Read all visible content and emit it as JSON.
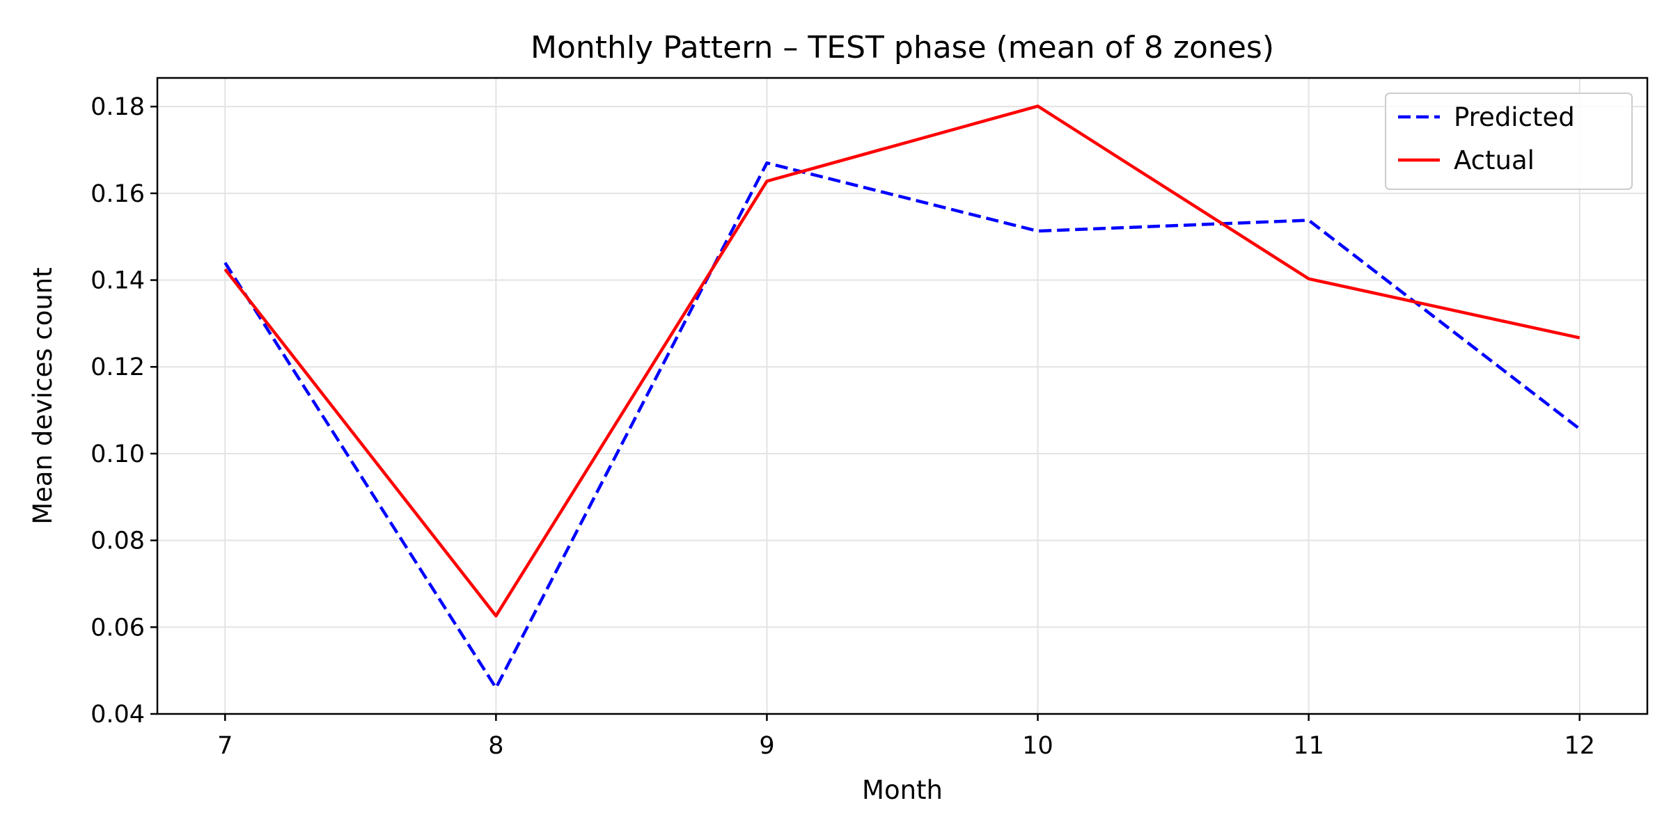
{
  "chart_data": {
    "type": "line",
    "title": "Monthly Pattern – TEST phase (mean of 8 zones)",
    "xlabel": "Month",
    "ylabel": "Mean devices count",
    "x": [
      7,
      8,
      9,
      10,
      11,
      12
    ],
    "x_ticks": [
      "7",
      "8",
      "9",
      "10",
      "11",
      "12"
    ],
    "y_ticks": [
      "0.04",
      "0.06",
      "0.08",
      "0.10",
      "0.12",
      "0.14",
      "0.16",
      "0.18"
    ],
    "xlim": [
      6.75,
      12.25
    ],
    "ylim": [
      0.04,
      0.1866
    ],
    "grid": true,
    "legend_position": "upper right",
    "series": [
      {
        "name": "Predicted",
        "values": [
          0.144,
          0.046,
          0.167,
          0.1513,
          0.1538,
          0.1057
        ],
        "color": "#0000ff",
        "style": "dashed"
      },
      {
        "name": "Actual",
        "values": [
          0.1425,
          0.0626,
          0.1628,
          0.1801,
          0.1403,
          0.1267
        ],
        "color": "#ff0000",
        "style": "solid"
      }
    ]
  }
}
